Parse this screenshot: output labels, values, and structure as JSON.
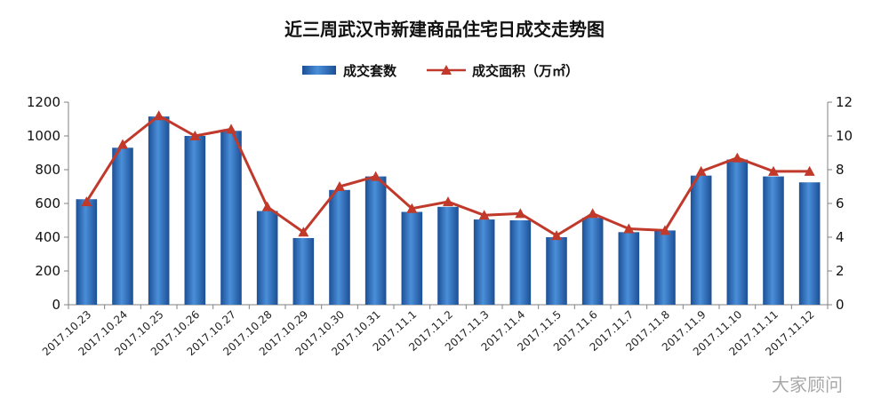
{
  "title": "近三周武汉市新建商品住宅日成交走势图",
  "watermark": "大家顾问",
  "chart_data": {
    "type": "bar",
    "categories": [
      "2017.10.23",
      "2017.10.24",
      "2017.10.25",
      "2017.10.26",
      "2017.10.27",
      "2017.10.28",
      "2017.10.29",
      "2017.10.30",
      "2017.10.31",
      "2017.11.1",
      "2017.11.2",
      "2017.11.3",
      "2017.11.4",
      "2017.11.5",
      "2017.11.6",
      "2017.11.7",
      "2017.11.8",
      "2017.11.9",
      "2017.11.10",
      "2017.11.11",
      "2017.11.12"
    ],
    "series": [
      {
        "name": "成交套数",
        "type": "bar",
        "axis": "left",
        "values": [
          625,
          930,
          1115,
          1000,
          1030,
          555,
          395,
          680,
          760,
          550,
          580,
          505,
          500,
          400,
          515,
          430,
          440,
          765,
          860,
          760,
          725
        ],
        "color": "#2e6db5"
      },
      {
        "name": "成交面积（万㎡）",
        "type": "line",
        "axis": "right",
        "marker": "triangle",
        "values": [
          6.1,
          9.5,
          11.2,
          10.0,
          10.4,
          5.8,
          4.3,
          7.0,
          7.6,
          5.7,
          6.1,
          5.3,
          5.4,
          4.1,
          5.4,
          4.5,
          4.4,
          7.9,
          8.7,
          7.9,
          7.9
        ],
        "color": "#c0392b"
      }
    ],
    "y_left": {
      "min": 0,
      "max": 1200,
      "ticks": [
        0,
        200,
        400,
        600,
        800,
        1000,
        1200
      ]
    },
    "y_right": {
      "min": 0,
      "max": 12,
      "ticks": [
        0,
        2,
        4,
        6,
        8,
        10,
        12
      ]
    },
    "legend": {
      "position": "top-center"
    },
    "grid": false
  }
}
